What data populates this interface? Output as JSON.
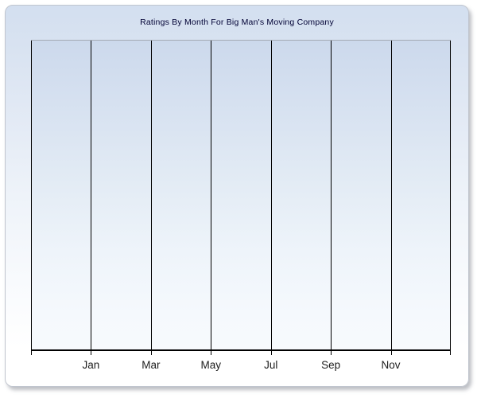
{
  "chart_data": {
    "type": "line",
    "title": "Ratings By Month For Big Man's Moving Company",
    "categories": [
      "Jan",
      "Mar",
      "May",
      "Jul",
      "Sep",
      "Nov"
    ],
    "series": [],
    "xlabel": "",
    "ylabel": "",
    "grid": "vertical-only",
    "legend": "none",
    "gridline_intervals": 7,
    "labeled_gridline_indexes": [
      1,
      2,
      3,
      4,
      5,
      6
    ],
    "empty_plot": true
  },
  "colors": {
    "panel_top": "#d3dff0",
    "panel_bottom": "#ffffff",
    "plot_top": "#ccd9ec",
    "plot_bottom": "#f7fafd",
    "gridline": "#000000",
    "axis": "#000000",
    "plot_top_border": "#a3aab4",
    "panel_border": "#c0c5ce",
    "title_text": "#000033",
    "label_text": "#1c1c1c"
  }
}
